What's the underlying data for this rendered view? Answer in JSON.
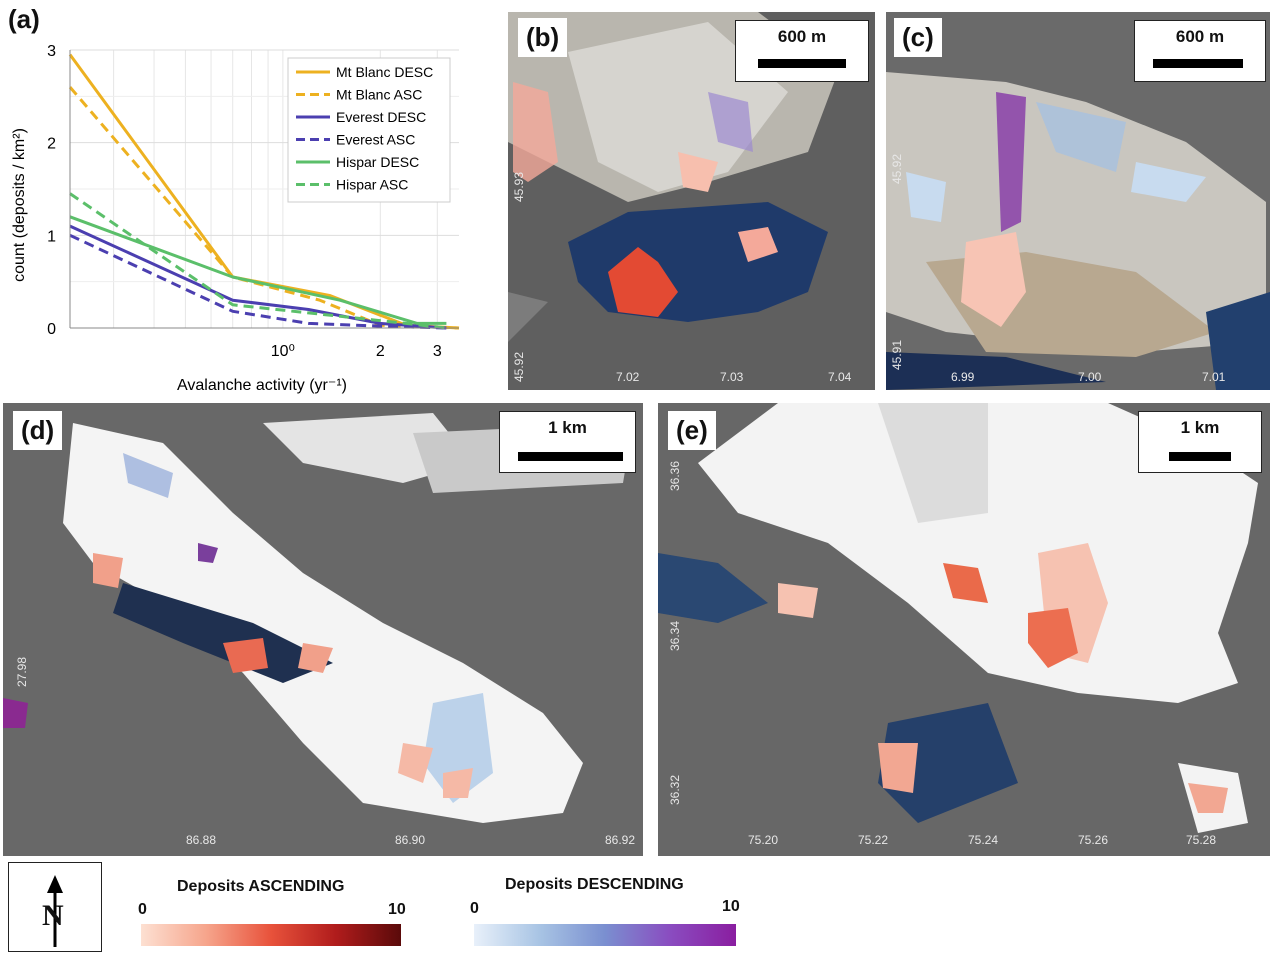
{
  "panels": {
    "a": "(a)",
    "b": "(b)",
    "c": "(c)",
    "d": "(d)",
    "e": "(e)"
  },
  "chart_data": {
    "type": "line",
    "xlabel": "Avalanche activity (yr⁻¹)",
    "ylabel": "count (deposits / km²)",
    "xscale": "log",
    "xlim": [
      0.22,
      3.5
    ],
    "ylim": [
      0,
      3
    ],
    "xticks": [
      {
        "value": 1,
        "label": "10⁰"
      },
      {
        "value": 2,
        "label": "2"
      },
      {
        "value": 3,
        "label": "3"
      }
    ],
    "yticks": [
      0,
      1,
      2,
      3
    ],
    "grid": true,
    "legend_position": "top-right",
    "series": [
      {
        "name": "Mt Blanc DESC",
        "color": "#EDB120",
        "dash": "solid",
        "x": [
          0.22,
          0.7,
          1.4,
          2.4,
          3.5
        ],
        "y": [
          2.95,
          0.55,
          0.35,
          0.03,
          0.0
        ]
      },
      {
        "name": "Mt Blanc ASC",
        "color": "#EDB120",
        "dash": "dash",
        "x": [
          0.22,
          0.7,
          1.3,
          2.0,
          3.5
        ],
        "y": [
          2.6,
          0.55,
          0.3,
          0.03,
          0.0
        ]
      },
      {
        "name": "Everest DESC",
        "color": "#4B3FB0",
        "dash": "solid",
        "x": [
          0.22,
          0.7,
          1.2,
          2.0,
          3.2
        ],
        "y": [
          1.1,
          0.3,
          0.2,
          0.05,
          0.0
        ]
      },
      {
        "name": "Everest ASC",
        "color": "#4B3FB0",
        "dash": "dash",
        "x": [
          0.22,
          0.7,
          1.2,
          2.0,
          3.2
        ],
        "y": [
          1.0,
          0.18,
          0.05,
          0.02,
          0.0
        ]
      },
      {
        "name": "Hispar DESC",
        "color": "#5BBF6A",
        "dash": "solid",
        "x": [
          0.22,
          0.7,
          1.5,
          2.6,
          3.2
        ],
        "y": [
          1.2,
          0.55,
          0.3,
          0.05,
          0.05
        ]
      },
      {
        "name": "Hispar ASC",
        "color": "#5BBF6A",
        "dash": "dash",
        "x": [
          0.22,
          0.7,
          1.3,
          2.4,
          3.2
        ],
        "y": [
          1.45,
          0.25,
          0.15,
          0.05,
          0.0
        ]
      }
    ]
  },
  "maps": {
    "b": {
      "scale": "600 m",
      "lon": [
        "7.02",
        "7.03",
        "7.04"
      ],
      "lat": [
        "45.93",
        "45.92"
      ]
    },
    "c": {
      "scale": "600 m",
      "lon": [
        "6.99",
        "7.00",
        "7.01"
      ],
      "lat": [
        "45.92",
        "45.91"
      ]
    },
    "d": {
      "scale": "1 km",
      "lon": [
        "86.88",
        "86.90",
        "86.92"
      ],
      "lat": [
        "27.98"
      ]
    },
    "e": {
      "scale": "1 km",
      "lon": [
        "75.20",
        "75.22",
        "75.24",
        "75.26",
        "75.28"
      ],
      "lat": [
        "36.36",
        "36.34",
        "36.32"
      ]
    }
  },
  "legend": {
    "asc_title": "Deposits ASCENDING",
    "desc_title": "Deposits DESCENDING",
    "asc_min": "0",
    "asc_max": "10",
    "desc_min": "0",
    "desc_max": "10",
    "asc_colors": [
      "#fde0d2",
      "#f6a58c",
      "#e8523b",
      "#b01c1c",
      "#5a0a0a"
    ],
    "desc_colors": [
      "#e8f0fa",
      "#a8c4e4",
      "#7a8fd0",
      "#8a4cc0",
      "#8a1ea0"
    ],
    "north": "N"
  }
}
